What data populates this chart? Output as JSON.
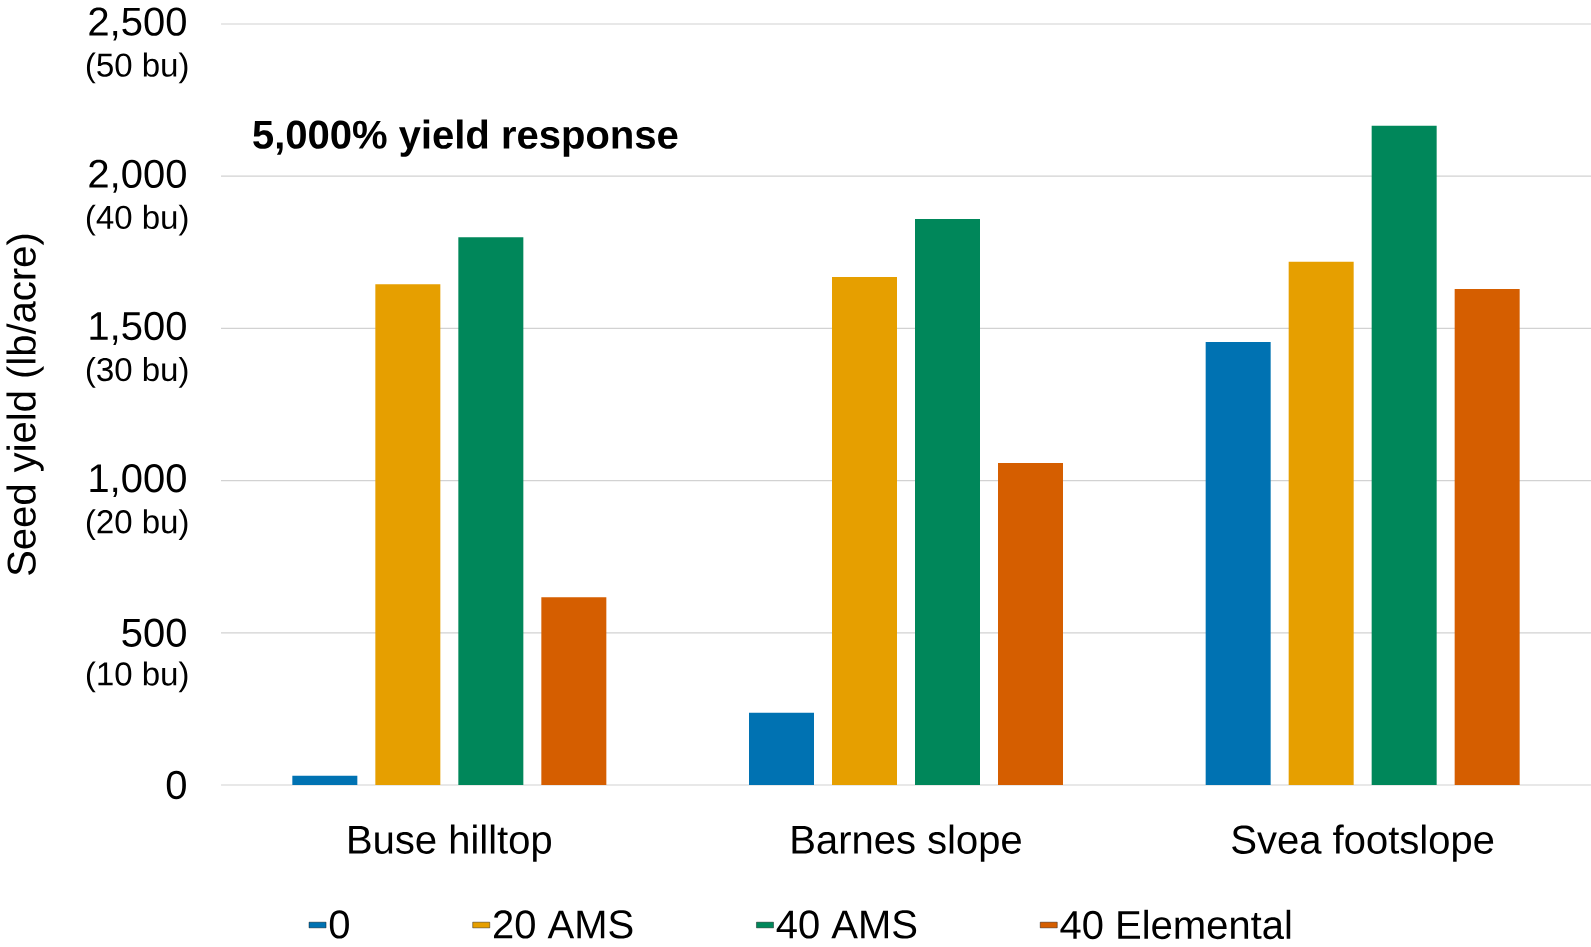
{
  "chart_data": {
    "type": "bar",
    "ylabel": "Seed yield (lb/acre)",
    "annotations": [
      "5,000% yield response",
      "(10 bu)",
      "(20 bu)",
      "(30 bu)",
      "(40 bu)",
      "(50 bu)"
    ],
    "categories": [
      "Buse hilltop",
      "Barnes slope",
      "Svea footslope"
    ],
    "series": [
      {
        "name": "0",
        "color": "#0072b2",
        "values": [
          30,
          237,
          1455
        ]
      },
      {
        "name": "20 AMS",
        "color": "#e69f00",
        "values": [
          1645,
          1669,
          1719
        ]
      },
      {
        "name": "40 AMS",
        "color": "#00875a",
        "values": [
          1799,
          1859,
          2166
        ]
      },
      {
        "name": "40 Elemental",
        "color": "#d55e00",
        "values": [
          617,
          1058,
          1629
        ]
      }
    ],
    "ylim": [
      0,
      2500
    ],
    "yticks": [
      0,
      500,
      {
        "value": 1000,
        "label": "1,000"
      },
      {
        "value": 1500,
        "label": "1,500"
      },
      {
        "value": 2000,
        "label": "2,000"
      },
      {
        "value": 2500,
        "label": "2,500"
      }
    ],
    "grid": "y",
    "legend": "bottom"
  }
}
